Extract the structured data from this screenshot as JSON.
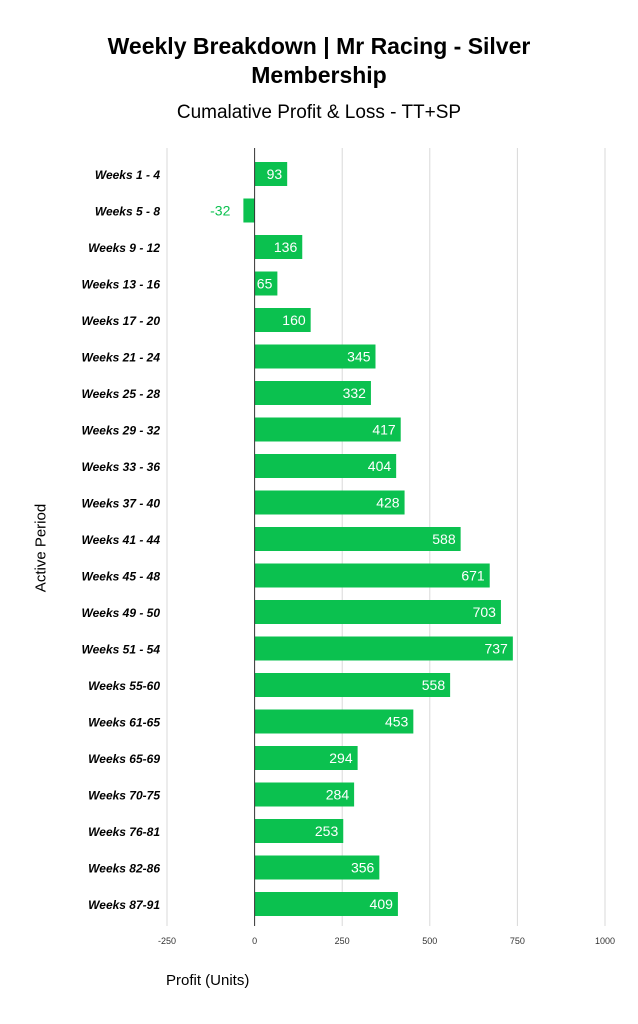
{
  "chart_data": {
    "type": "bar",
    "orientation": "horizontal",
    "title": "Weekly Breakdown | Mr Racing - Silver Membership",
    "subtitle": "Cumalative Profit & Loss - TT+SP",
    "xlabel": "Profit (Units)",
    "ylabel": "Active Period",
    "xlim": [
      -250,
      1000
    ],
    "xticks": [
      -250,
      0,
      250,
      500,
      750,
      1000
    ],
    "grid": true,
    "categories": [
      "Weeks 1 - 4",
      "Weeks 5 - 8",
      "Weeks 9 - 12",
      "Weeks 13 - 16",
      "Weeks 17 - 20",
      "Weeks 21 - 24",
      "Weeks 25 - 28",
      "Weeks 29 - 32",
      "Weeks 33 - 36",
      "Weeks 37 - 40",
      "Weeks 41 - 44",
      "Weeks 45 - 48",
      "Weeks 49 - 50",
      "Weeks 51 - 54",
      "Weeks 55-60",
      "Weeks 61-65",
      "Weeks 65-69",
      "Weeks 70-75",
      "Weeks 76-81",
      "Weeks 82-86",
      "Weeks 87-91"
    ],
    "values": [
      93,
      -32,
      136,
      65,
      160,
      345,
      332,
      417,
      404,
      428,
      588,
      671,
      703,
      737,
      558,
      453,
      294,
      284,
      253,
      356,
      409
    ],
    "colors": {
      "bar": "#0bc14f",
      "negative_label": "#0bc14f",
      "inside_label": "#ffffff",
      "grid": "#d9d9d9",
      "zero_line": "#333333"
    }
  }
}
